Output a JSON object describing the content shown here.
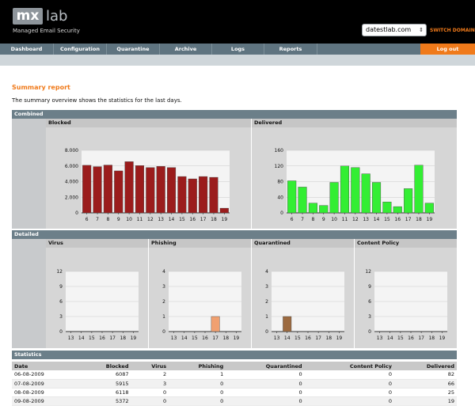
{
  "header": {
    "logo_mx": "mx",
    "logo_lab": "lab",
    "tagline": "Managed Email Security",
    "domain_value": "datestlab.com",
    "switch_domain": "SWITCH DOMAIN"
  },
  "nav": {
    "items": [
      "Dashboard",
      "Configuration",
      "Quarantine",
      "Archive",
      "Logs",
      "Reports"
    ],
    "logout": "Log out"
  },
  "main": {
    "title": "Summary report",
    "intro": "The summary overview shows the statistics for the last days."
  },
  "sections": {
    "combined": "Combined",
    "detailed": "Detailed",
    "statistics": "Statistics"
  },
  "columns": {
    "blocked": "Blocked",
    "delivered": "Delivered",
    "virus": "Virus",
    "phishing": "Phishing",
    "quarantined": "Quarantined",
    "content_policy": "Content Policy"
  },
  "colors": {
    "accent": "#f07a1a",
    "blocked": "#9b1c1c",
    "delivered": "#33ee33",
    "phishing": "#f0a070",
    "quarantined": "#9c6a40"
  },
  "chart_data": [
    {
      "type": "bar",
      "title": "Blocked",
      "categories": [
        "6",
        "7",
        "8",
        "9",
        "10",
        "11",
        "12",
        "13",
        "14",
        "15",
        "16",
        "17",
        "18",
        "19"
      ],
      "values": [
        6087,
        5915,
        6118,
        5372,
        6550,
        6050,
        5800,
        5950,
        5800,
        4650,
        4350,
        4650,
        4550,
        600
      ],
      "ylim": [
        0,
        8000
      ],
      "yticks": [
        "0",
        "2.000",
        "4.000",
        "6.000",
        "8.000"
      ],
      "grid": true
    },
    {
      "type": "bar",
      "title": "Delivered",
      "categories": [
        "6",
        "7",
        "8",
        "9",
        "10",
        "11",
        "12",
        "13",
        "14",
        "15",
        "16",
        "17",
        "18",
        "19"
      ],
      "values": [
        82,
        66,
        25,
        19,
        78,
        120,
        116,
        100,
        78,
        28,
        16,
        62,
        122,
        25
      ],
      "ylim": [
        0,
        160
      ],
      "yticks": [
        "0",
        "40",
        "80",
        "120",
        "160"
      ],
      "grid": true
    },
    {
      "type": "bar",
      "title": "Virus",
      "categories": [
        "13",
        "14",
        "15",
        "16",
        "17",
        "18",
        "19"
      ],
      "values": [
        0,
        0,
        0,
        0,
        0,
        0,
        0
      ],
      "ylim": [
        0,
        12
      ],
      "yticks": [
        "0",
        "3",
        "6",
        "9",
        "12"
      ],
      "grid": true
    },
    {
      "type": "bar",
      "title": "Phishing",
      "categories": [
        "13",
        "14",
        "15",
        "16",
        "17",
        "18",
        "19"
      ],
      "values": [
        0,
        0,
        0,
        0,
        1,
        0,
        0
      ],
      "ylim": [
        0,
        4
      ],
      "yticks": [
        "0",
        "1",
        "2",
        "3",
        "4"
      ],
      "grid": true
    },
    {
      "type": "bar",
      "title": "Quarantined",
      "categories": [
        "13",
        "14",
        "15",
        "16",
        "17",
        "18",
        "19"
      ],
      "values": [
        0,
        1,
        0,
        0,
        0,
        0,
        0
      ],
      "ylim": [
        0,
        4
      ],
      "yticks": [
        "0",
        "1",
        "2",
        "3",
        "4"
      ],
      "grid": true
    },
    {
      "type": "bar",
      "title": "Content Policy",
      "categories": [
        "13",
        "14",
        "15",
        "16",
        "17",
        "18",
        "19"
      ],
      "values": [
        0,
        0,
        0,
        0,
        0,
        0,
        0
      ],
      "ylim": [
        0,
        12
      ],
      "yticks": [
        "0",
        "3",
        "6",
        "9",
        "12"
      ],
      "grid": true
    }
  ],
  "statistics": {
    "headers": [
      "Date",
      "Blocked",
      "Virus",
      "Phishing",
      "Quarantined",
      "Content Policy",
      "Delivered"
    ],
    "rows": [
      [
        "06-08-2009",
        "6087",
        "2",
        "1",
        "0",
        "0",
        "82"
      ],
      [
        "07-08-2009",
        "5915",
        "3",
        "0",
        "0",
        "0",
        "66"
      ],
      [
        "08-08-2009",
        "6118",
        "0",
        "0",
        "0",
        "0",
        "25"
      ],
      [
        "09-08-2009",
        "5372",
        "0",
        "0",
        "0",
        "0",
        "19"
      ]
    ]
  }
}
